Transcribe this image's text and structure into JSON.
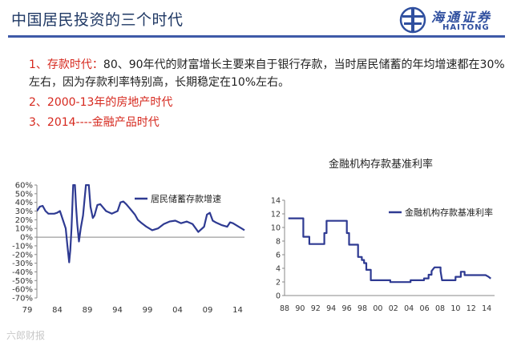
{
  "slide": {
    "title": "中国居民投资的三个时代",
    "logo": {
      "cn": "海通证券",
      "en": "HAITONG"
    },
    "points": [
      {
        "num": "1、",
        "head": "存款时代：",
        "body": "80、90年代的财富增长主要来自于银行存款，当时居民储蓄的年均增速都在30%左右，因为存款利率特别高，长期稳定在10%左右。"
      },
      {
        "num": "2、",
        "text": "2000-13年的房地产时代"
      },
      {
        "num": "3、",
        "text": "2014----金融产品时代"
      }
    ],
    "watermark": "六郎财报"
  },
  "colors": {
    "series": "#2e3a92",
    "title": "#1f3864",
    "accent": "#d6281e",
    "rule": "#3f5aa8"
  },
  "chart_data": [
    {
      "type": "line",
      "title": "",
      "xlabel": "",
      "ylabel": "",
      "xlim": [
        1979,
        2015
      ],
      "ylim": [
        -0.7,
        0.6
      ],
      "yticks": [
        0.6,
        0.5,
        0.4,
        0.3,
        0.2,
        0.1,
        0.0,
        -0.1,
        -0.2,
        -0.3,
        -0.4,
        -0.5,
        -0.6,
        -0.7
      ],
      "ytick_labels": [
        "60%",
        "50%",
        "40%",
        "30%",
        "20%",
        "10%",
        "0%",
        "-10%",
        "-20%",
        "-30%",
        "-40%",
        "-50%",
        "-60%",
        "-70%"
      ],
      "xtick_labels": [
        "79",
        "84",
        "89",
        "94",
        "99",
        "04",
        "09",
        "14"
      ],
      "legend_position": "top-right",
      "grid": false,
      "series": [
        {
          "name": "居民储蓄存款增速",
          "x": [
            1979,
            1979.5,
            1980,
            1980.5,
            1981,
            1982,
            1982.5,
            1983,
            1983.5,
            1984,
            1984.3,
            1984.6,
            1984.8,
            1985,
            1985.3,
            1985.6,
            1985.8,
            1986,
            1986.3,
            1986.6,
            1987,
            1987.5,
            1988,
            1988.3,
            1988.7,
            1989,
            1989.5,
            1990,
            1990.5,
            1991,
            1992,
            1993,
            1993.5,
            1994,
            1994.5,
            1995,
            1995.5,
            1996,
            1996.5,
            1997,
            1998,
            1999,
            2000,
            2001,
            2002,
            2003,
            2004,
            2005,
            2006,
            2007,
            2008,
            2008.5,
            2009,
            2009.5,
            2010,
            2011,
            2012,
            2012.5,
            2013,
            2014,
            2014.5,
            2015
          ],
          "y": [
            0.3,
            0.35,
            0.36,
            0.3,
            0.27,
            0.27,
            0.28,
            0.3,
            0.2,
            0.1,
            -0.1,
            -0.29,
            -0.15,
            0.1,
            0.6,
            0.6,
            0.35,
            0.15,
            -0.05,
            0.1,
            0.25,
            0.6,
            0.6,
            0.35,
            0.22,
            0.25,
            0.37,
            0.38,
            0.34,
            0.3,
            0.27,
            0.3,
            0.4,
            0.41,
            0.38,
            0.34,
            0.3,
            0.26,
            0.2,
            0.17,
            0.12,
            0.08,
            0.1,
            0.15,
            0.18,
            0.19,
            0.16,
            0.18,
            0.15,
            0.06,
            0.12,
            0.26,
            0.28,
            0.19,
            0.17,
            0.14,
            0.12,
            0.17,
            0.16,
            0.12,
            0.1,
            0.08
          ]
        }
      ]
    },
    {
      "type": "line",
      "title": "金融机构存款基准利率",
      "xlabel": "",
      "ylabel": "",
      "xlim": [
        1988,
        2016
      ],
      "ylim": [
        0,
        14
      ],
      "yticks": [
        0,
        2,
        4,
        6,
        8,
        10,
        12,
        14
      ],
      "ytick_labels": [
        "0",
        "2",
        "4",
        "6",
        "8",
        "10",
        "12",
        "14"
      ],
      "xtick_labels": [
        "88",
        "90",
        "92",
        "94",
        "96",
        "98",
        "00",
        "02",
        "04",
        "06",
        "08",
        "10",
        "12",
        "14"
      ],
      "legend_position": "top-right",
      "grid": false,
      "series": [
        {
          "name": "金融机构存款基准利率",
          "x": [
            1988.5,
            1989.5,
            1990.5,
            1990.5,
            1991.3,
            1991.3,
            1993.3,
            1993.3,
            1993.6,
            1993.6,
            1996.3,
            1996.3,
            1996.6,
            1996.6,
            1997.8,
            1997.8,
            1998.3,
            1998.3,
            1998.6,
            1998.6,
            1998.9,
            1998.9,
            1999.5,
            1999.5,
            2002.1,
            2002.1,
            2004.8,
            2004.8,
            2006.6,
            2006.6,
            2007.2,
            2007.2,
            2007.6,
            2007.6,
            2008.0,
            2008.8,
            2008.8,
            2009.0,
            2010.8,
            2010.8,
            2011.5,
            2011.5,
            2012.0,
            2012.0,
            2014.8,
            2015.2,
            2015.5
          ],
          "y": [
            11.34,
            11.34,
            11.34,
            8.64,
            8.64,
            7.56,
            7.56,
            9.18,
            9.18,
            10.98,
            10.98,
            9.18,
            9.18,
            7.47,
            7.47,
            5.67,
            5.67,
            5.22,
            5.22,
            4.77,
            4.77,
            3.78,
            3.78,
            2.25,
            2.25,
            1.98,
            1.98,
            2.25,
            2.25,
            2.52,
            2.52,
            3.06,
            3.06,
            3.6,
            4.14,
            4.14,
            3.6,
            2.25,
            2.25,
            2.75,
            2.75,
            3.5,
            3.5,
            3.0,
            3.0,
            2.75,
            2.5
          ]
        }
      ]
    }
  ]
}
